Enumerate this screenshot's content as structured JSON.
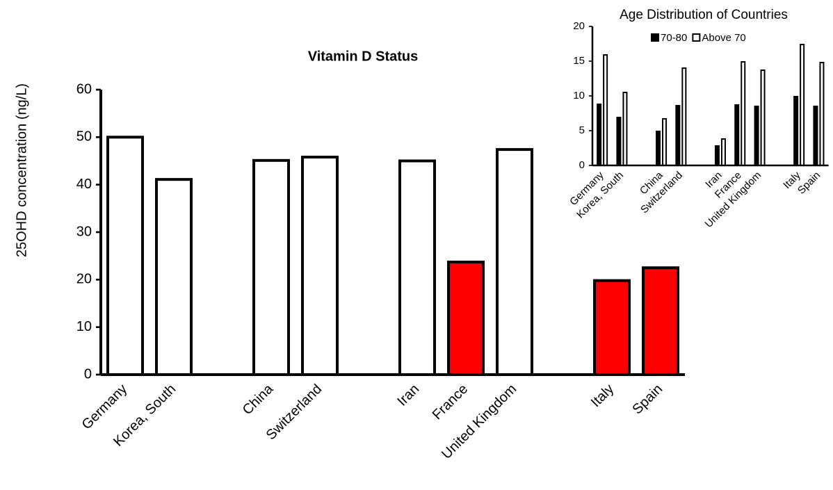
{
  "chart_data": [
    {
      "type": "bar",
      "title": "Vitamin D Status",
      "ylabel": "25OHD concentration (ng/L)",
      "categories": [
        "Germany",
        "Korea, South",
        null,
        "China",
        "Switzerland",
        null,
        "Iran",
        "France",
        "United Kingdom",
        null,
        "Italy",
        "Spain"
      ],
      "values": [
        50,
        41.1,
        null,
        45.1,
        45.8,
        null,
        45,
        23.7,
        47.4,
        null,
        19.8,
        22.5
      ],
      "colors": [
        "#ffffff",
        "#ffffff",
        null,
        "#ffffff",
        "#ffffff",
        null,
        "#ffffff",
        "#ff0000",
        "#ffffff",
        null,
        "#ff0000",
        "#ff0000"
      ],
      "ylim": [
        0,
        60
      ],
      "yticks": [
        0,
        10,
        20,
        30,
        40,
        50,
        60
      ]
    },
    {
      "type": "grouped_bar",
      "title": "Age Distribution of Countries",
      "categories": [
        "Germany",
        "Korea, South",
        null,
        "China",
        "Switzerland",
        null,
        "Iran",
        "France",
        "United Kingdom",
        null,
        "Italy",
        "Spain"
      ],
      "series": [
        {
          "name": "70-80",
          "color": "#000000",
          "values": [
            8.8,
            6.9,
            null,
            4.9,
            8.6,
            null,
            2.8,
            8.7,
            8.5,
            null,
            9.9,
            8.5
          ]
        },
        {
          "name": "Above 70",
          "color": "#ffffff",
          "values": [
            15.9,
            10.5,
            null,
            6.7,
            14,
            null,
            3.8,
            14.9,
            13.7,
            null,
            17.4,
            14.8
          ]
        }
      ],
      "ylim": [
        0,
        20
      ],
      "yticks": [
        0,
        5,
        10,
        15,
        20
      ],
      "legend": "top"
    }
  ]
}
